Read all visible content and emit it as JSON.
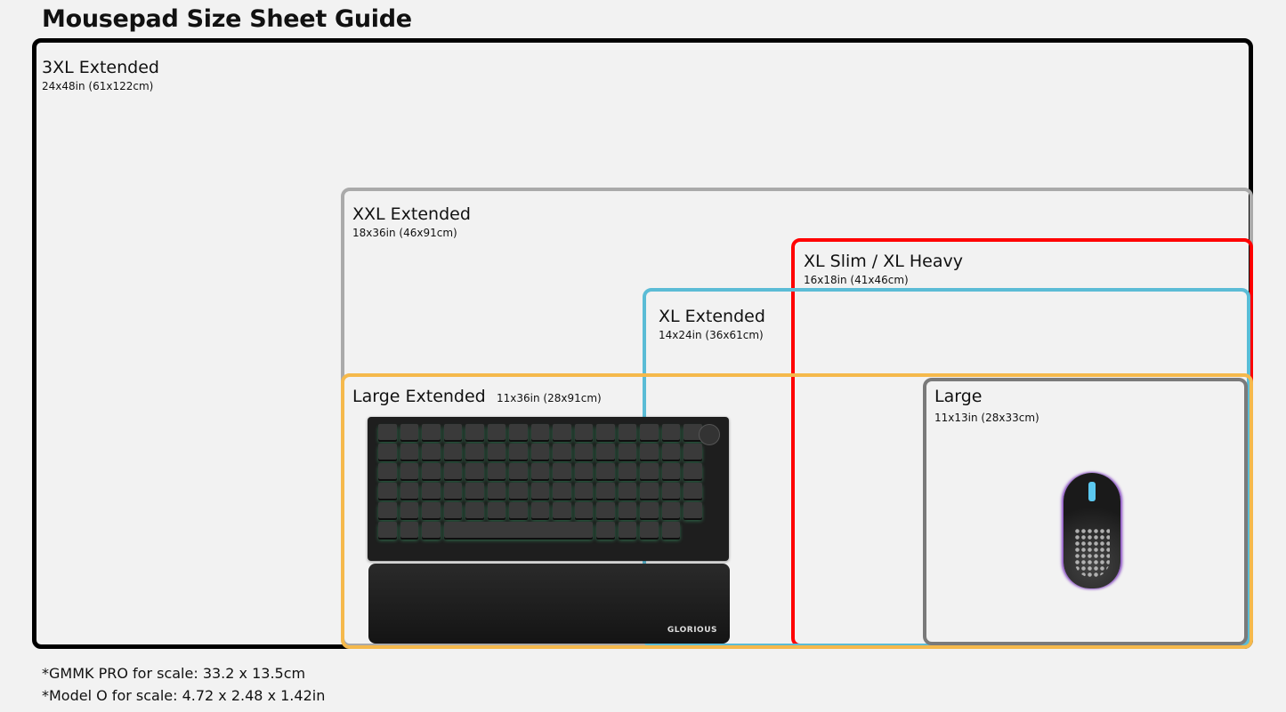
{
  "title": "Mousepad Size Sheet Guide",
  "sizes": [
    {
      "name": "3XL Extended",
      "dims": "24x48in (61x122cm)",
      "color": "#000000"
    },
    {
      "name": "XXL Extended",
      "dims": "18x36in (46x91cm)",
      "color": "#aaaaaa"
    },
    {
      "name": "XL Slim / XL Heavy",
      "dims": "16x18in (41x46cm)",
      "color": "#ff0000"
    },
    {
      "name": "XL Extended",
      "dims": "14x24in (36x61cm)",
      "color": "#5bbcd6"
    },
    {
      "name": "Large Extended",
      "dims": "11x36in (28x91cm)",
      "color": "#f5b94c"
    },
    {
      "name": "Large",
      "dims": "11x13in (28x33cm)",
      "color": "#7a7a7a"
    }
  ],
  "brand_logo": "GLORIOUS",
  "notes": [
    "*GMMK PRO for scale: 33.2 x 13.5cm",
    "*Model O for scale: 4.72 x 2.48 x 1.42in"
  ]
}
